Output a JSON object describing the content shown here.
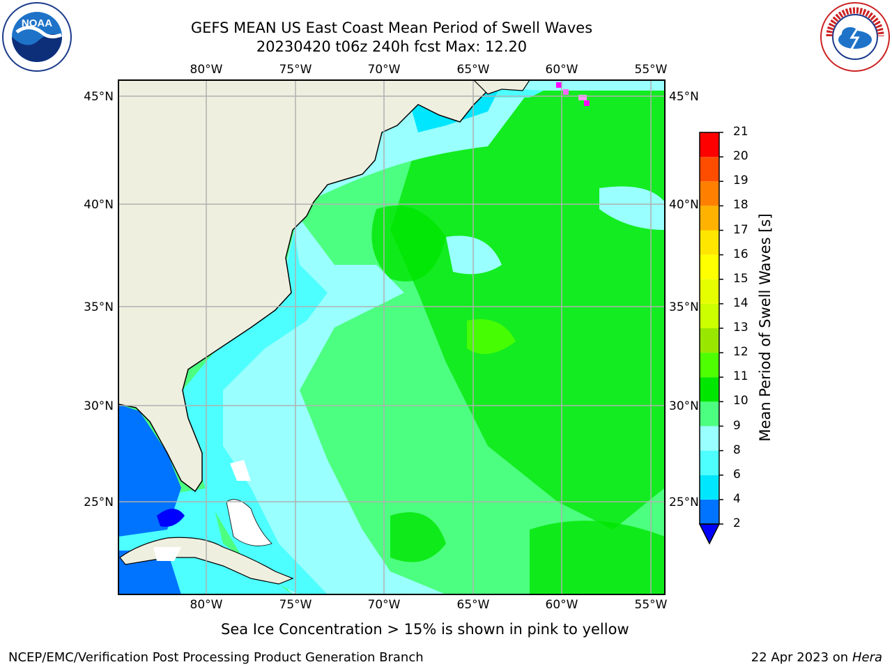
{
  "title": {
    "line1": "GEFS MEAN US East Coast Mean Period of Swell Waves",
    "line2": "20230420 t06z 240h fcst   Max: 12.20"
  },
  "map": {
    "lon_ticks_top": [
      "80°W",
      "75°W",
      "70°W",
      "65°W",
      "60°W",
      "55°W"
    ],
    "lon_ticks_bottom": [
      "80°W",
      "75°W",
      "70°W",
      "65°W",
      "60°W",
      "55°W"
    ],
    "lat_ticks_left": [
      "45°N",
      "40°N",
      "35°N",
      "30°N",
      "25°N"
    ],
    "lat_ticks_right": [
      "45°N",
      "40°N",
      "35°N",
      "30°N",
      "25°N"
    ],
    "land_color": "#efefdf",
    "grid": true
  },
  "colorbar": {
    "title": "Mean Period of Swell Waves [s]",
    "levels": [
      "2",
      "4",
      "6",
      "8",
      "9",
      "10",
      "11",
      "12",
      "13",
      "14",
      "15",
      "16",
      "17",
      "18",
      "19",
      "20",
      "21"
    ],
    "colors": [
      "#0073ff",
      "#00e6ff",
      "#4dffff",
      "#99ffff",
      "#4dff80",
      "#00e600",
      "#4dff00",
      "#99e600",
      "#ccff00",
      "#e6ff00",
      "#ffff00",
      "#ffe600",
      "#ffb300",
      "#ff8000",
      "#ff4d00",
      "#ff0000"
    ],
    "under_color": "#0000ff"
  },
  "note": "Sea Ice Concentration > 15% is shown in pink to yellow",
  "footer": {
    "left": "NCEP/EMC/Verification Post Processing Product Generation Branch",
    "date": "22 Apr 2023 on ",
    "host": "Hera"
  },
  "logos": {
    "noaa_text": "NOAA",
    "nws_text": "NATIONAL WEATHER SERVICE"
  }
}
